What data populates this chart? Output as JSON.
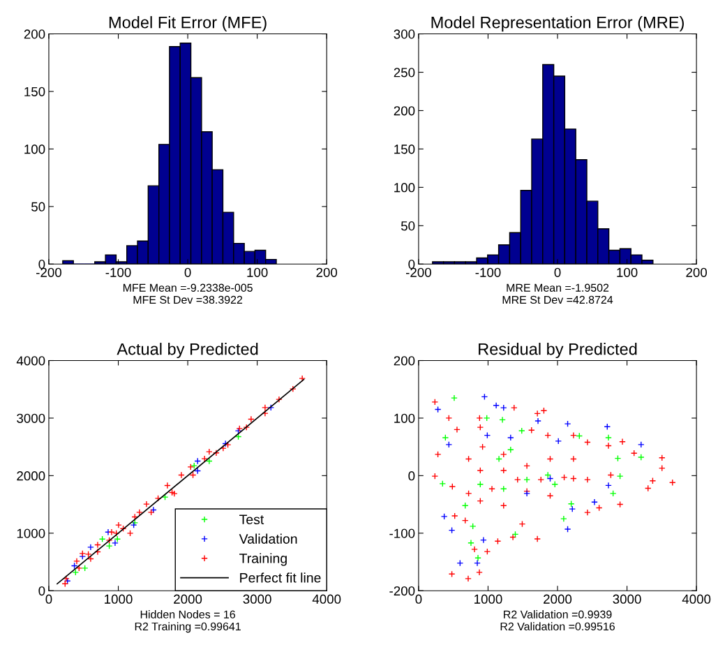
{
  "chart_data": [
    {
      "type": "histogram",
      "title": "Model Fit Error (MFE)",
      "xlabel": "MFE Mean =-9.2338e-005\nMFE St Dev =38.3922",
      "bins": [
        -180,
        -164.6,
        -149.3,
        -133.9,
        -118.5,
        -103.1,
        -87.8,
        -72.4,
        -57.0,
        -41.6,
        -26.3,
        -10.9,
        4.5,
        19.9,
        35.2,
        50.6,
        66.0,
        81.4,
        96.7,
        112.1,
        127.5
      ],
      "values": [
        3,
        0,
        0,
        2,
        8,
        2,
        16,
        20,
        68,
        104,
        189,
        192,
        162,
        115,
        82,
        45,
        18,
        11,
        12,
        4
      ],
      "color": "#000090",
      "xlim": [
        -200,
        200
      ],
      "xticks": [
        -200,
        -100,
        0,
        100,
        200
      ],
      "ylim": [
        0,
        200
      ],
      "yticks": [
        0,
        50,
        100,
        150,
        200
      ],
      "grid": false
    },
    {
      "type": "histogram",
      "title": "Model Representation Error (MRE)",
      "xlabel": "MRE Mean =-1.9502\nMRE St Dev =42.8724",
      "bins": [
        -180,
        -164.1,
        -148.3,
        -132.4,
        -116.5,
        -100.7,
        -84.8,
        -68.9,
        -53.0,
        -37.2,
        -21.3,
        -5.4,
        10.4,
        26.3,
        42.2,
        58.0,
        73.9,
        89.8,
        105.7,
        121.5,
        137.4
      ],
      "values": [
        3,
        3,
        3,
        3,
        8,
        12,
        25,
        41,
        96,
        163,
        260,
        245,
        176,
        136,
        82,
        46,
        18,
        20,
        12,
        5
      ],
      "color": "#000090",
      "xlim": [
        -200,
        200
      ],
      "xticks": [
        -200,
        -100,
        0,
        100,
        200
      ],
      "ylim": [
        0,
        300
      ],
      "yticks": [
        0,
        50,
        100,
        150,
        200,
        250,
        300
      ],
      "grid": false
    },
    {
      "type": "scatter",
      "title": "Actual by Predicted",
      "xlabel": "Hidden Nodes = 16\nR2 Training =0.99641",
      "xlim": [
        0,
        4000
      ],
      "xticks": [
        0,
        1000,
        2000,
        3000,
        4000
      ],
      "ylim": [
        0,
        4000
      ],
      "yticks": [
        0,
        1000,
        2000,
        3000,
        4000
      ],
      "grid": false,
      "legend": "bottom right",
      "marker": "cross",
      "series": [
        {
          "name": "Test",
          "color": "#00ff00",
          "x": [
            385,
            519,
            770,
            870,
            987,
            1673,
            2092,
            2309,
            2728,
            1238
          ],
          "values": [
            320,
            392,
            898,
            777,
            898,
            1626,
            2172,
            2253,
            2678,
            1181
          ]
        },
        {
          "name": "Validation",
          "color": "#0000ff",
          "x": [
            268,
            368,
            485,
            602,
            854,
            954,
            1222,
            1506,
            2142,
            2142,
            2543,
            2728,
            3197
          ],
          "values": [
            170,
            433,
            595,
            756,
            1019,
            829,
            1141,
            1404,
            2253,
            2083,
            2556,
            2779,
            3183
          ]
        },
        {
          "name": "Training",
          "color": "#ff0000",
          "x": [
            234,
            251,
            435,
            485,
            602,
            703,
            904,
            1004,
            1238,
            1406,
            1707,
            1774,
            1908,
            2242,
            2410,
            2577,
            2745,
            2912,
            3113,
            3314,
            3514,
            3648,
            1171,
            870,
            1071,
            1473,
            1807,
            2075,
            2510,
            2845,
            703,
            569,
            402,
            971,
            1305,
            1573,
            2042,
            2309,
            3113
          ],
          "values": [
            121,
            210,
            392,
            647,
            554,
            797,
            1019,
            1141,
            1282,
            1505,
            1828,
            1707,
            2010,
            2294,
            2395,
            2536,
            2819,
            2981,
            3183,
            3325,
            3507,
            3689,
            999,
            878,
            1080,
            1363,
            1687,
            2010,
            2476,
            2840,
            676,
            635,
            514,
            999,
            1363,
            1606,
            2152,
            2415,
            3082
          ]
        },
        {
          "name": "Perfect fit line",
          "type": "line",
          "color": "#000000",
          "marker": "none",
          "x": [
            120,
            3670
          ],
          "values": [
            120,
            3670
          ]
        }
      ]
    },
    {
      "type": "scatter",
      "title": "Residual by Predicted",
      "xlabel": "R2 Validation =0.9939\nR2 Validation =0.99516",
      "xlim": [
        0,
        4000
      ],
      "xticks": [
        0,
        1000,
        2000,
        3000,
        4000
      ],
      "ylim": [
        -200,
        200
      ],
      "yticks": [
        -200,
        -100,
        0,
        100,
        200
      ],
      "grid": false,
      "marker": "cross",
      "series": [
        {
          "color": "#ff0000",
          "x": [
            235,
            436,
            878,
            1375,
            1803,
            1710,
            235,
            278,
            486,
            479,
            714,
            875,
            805,
            989,
            1140,
            1710,
            1358,
            671,
            520,
            1224,
            1492,
            2431,
            2599,
            2900,
            3303,
            3655,
            3504,
            3504,
            3370,
            3102,
            2934,
            2431,
            2230,
            1861,
            1626,
            888,
            553,
            2733,
            2230,
            1894,
            1559,
            1224,
            888,
            720,
            921,
            1056,
            1425,
            1761,
            2096,
            2431,
            2767,
            888,
            720,
            1894,
            1559,
            1224,
            2230
          ],
          "values": [
            128,
            100,
            100,
            118,
            113,
            108,
            -1,
            37,
            -19,
            -171,
            -179,
            -168,
            -128,
            -132,
            -114,
            -110,
            -107,
            -78,
            -70,
            -52,
            -84,
            -64,
            -56,
            -50,
            -22,
            -12,
            13,
            31,
            -9,
            39,
            59,
            58,
            70,
            70,
            79,
            84,
            80,
            52,
            29,
            29,
            17,
            9,
            9,
            29,
            50,
            -23,
            -7,
            -7,
            -3,
            -7,
            1,
            -44,
            -31,
            -35,
            -27,
            37,
            -5
          ]
        },
        {
          "color": "#00ff00",
          "x": [
            513,
            982,
            1207,
            1485,
            386,
            2314,
            2733,
            2868,
            3203,
            345,
            671,
            781,
            754,
            855,
            1392,
            2089,
            2197,
            2800,
            2900,
            1224,
            1559,
            1861,
            1962,
            888,
            1157,
            1325
          ],
          "values": [
            135,
            100,
            97,
            78,
            66,
            69,
            66,
            30,
            32,
            -14,
            -52,
            -88,
            -117,
            -143,
            -102,
            -75,
            -49,
            -31,
            -1,
            -23,
            -7,
            1,
            -15,
            -15,
            29,
            45
          ]
        },
        {
          "color": "#0000ff",
          "x": [
            278,
            949,
            1117,
            1224,
            1719,
            2146,
            2716,
            3203,
            436,
            369,
            479,
            597,
            845,
            934,
            2146,
            2213,
            2532,
            2733,
            2012,
            1325,
            1894,
            1559,
            989
          ],
          "values": [
            115,
            137,
            122,
            118,
            95,
            90,
            85,
            54,
            54,
            -71,
            -95,
            -152,
            -152,
            -112,
            -93,
            -58,
            -46,
            -17,
            60,
            66,
            -5,
            -31,
            70
          ]
        }
      ]
    }
  ]
}
